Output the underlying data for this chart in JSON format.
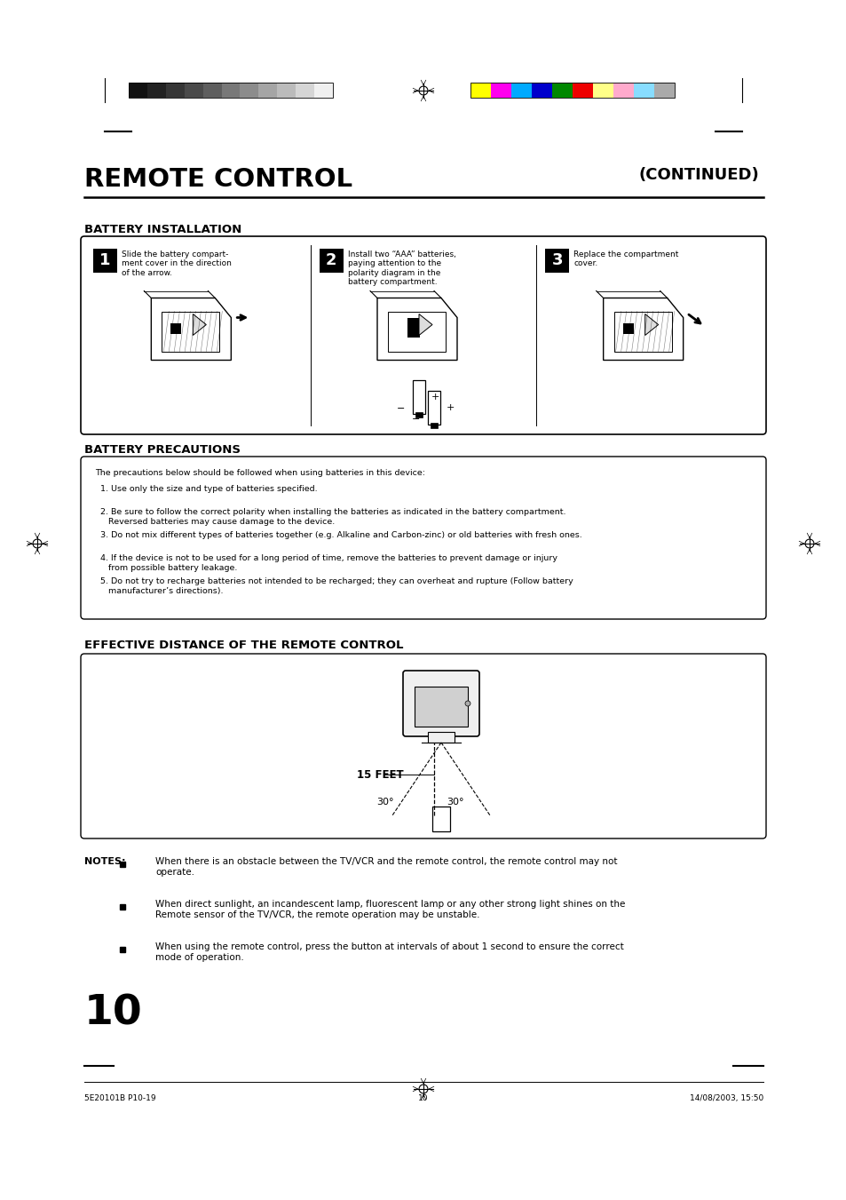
{
  "bg_color": "#ffffff",
  "page_width": 9.54,
  "page_height": 13.51,
  "color_bar_left_colors": [
    "#111111",
    "#222222",
    "#363636",
    "#4a4a4a",
    "#5e5e5e",
    "#787878",
    "#8c8c8c",
    "#a5a5a5",
    "#bbbbbb",
    "#d5d5d5",
    "#f0f0f0"
  ],
  "color_bar_right_colors": [
    "#ffff00",
    "#ff00ee",
    "#00aaff",
    "#0000cc",
    "#008800",
    "#ee0000",
    "#ffff88",
    "#ffaacc",
    "#88ddff",
    "#aaaaaa"
  ],
  "title": "REMOTE CONTROL",
  "subtitle": "(CONTINUED)",
  "section1_title": "BATTERY INSTALLATION",
  "section2_title": "BATTERY PRECAUTIONS",
  "section3_title": "EFFECTIVE DISTANCE OF THE REMOTE CONTROL",
  "step1_text": "Slide the battery compart-\nment cover in the direction\nof the arrow.",
  "step2_text": "Install two “AAA” batteries,\npaying attention to the\npolarity diagram in the\nbattery compartment.",
  "step3_text": "Replace the compartment\ncover.",
  "precaution_title_text": "The precautions below should be followed when using batteries in this device:",
  "precaution_items": [
    "1. Use only the size and type of batteries specified.",
    "2. Be sure to follow the correct polarity when installing the batteries as indicated in the battery compartment.\n   Reversed batteries may cause damage to the device.",
    "3. Do not mix different types of batteries together (e.g. Alkaline and Carbon-zinc) or old batteries with fresh ones.",
    "4. If the device is not to be used for a long period of time, remove the batteries to prevent damage or injury\n   from possible battery leakage.",
    "5. Do not try to recharge batteries not intended to be recharged; they can overheat and rupture (Follow battery\n   manufacturer’s directions)."
  ],
  "distance_label": "15 FEET",
  "angle_left": "30°",
  "angle_right": "30°",
  "notes_title": "NOTES:",
  "notes_bullets": [
    "When there is an obstacle between the TV/VCR and the remote control, the remote control may not\noperate.",
    "When direct sunlight, an incandescent lamp, fluorescent lamp or any other strong light shines on the\nRemote sensor of the TV/VCR, the remote operation may be unstable.",
    "When using the remote control, press the button at intervals of about 1 second to ensure the correct\nmode of operation."
  ],
  "page_number": "10",
  "footer_left": "5E20101B P10-19",
  "footer_center": "10",
  "footer_right": "14/08/2003, 15:50"
}
